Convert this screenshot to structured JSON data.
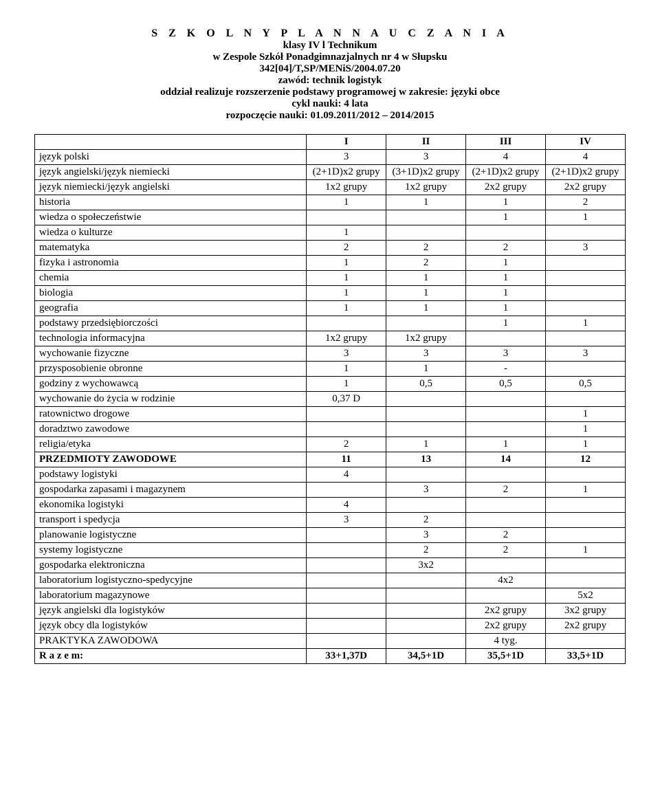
{
  "header": {
    "title_main": "S Z K O L N Y   P L A N   N A U C Z A N I A",
    "title_sub": "klasy  IV l Technikum",
    "school": "w Zespole Szkół Ponadgimnazjalnych nr 4 w Słupsku",
    "code": "342[04]/T,SP/MENiS/2004.07.20",
    "profession": "zawód: technik logistyk",
    "branch": "oddział realizuje  rozszerzenie podstawy programowej w zakresie: języki obce",
    "cycle": "cykl nauki:  4 lata",
    "start": "rozpoczęcie nauki:  01.09.2011/2012 – 2014/2015"
  },
  "table": {
    "columns": [
      "",
      "I",
      "II",
      "III",
      "IV"
    ],
    "col_widths": [
      "46%",
      "13.5%",
      "13.5%",
      "13.5%",
      "13.5%"
    ],
    "rows": [
      {
        "label": "język polski",
        "vals": [
          "3",
          "3",
          "4",
          "4"
        ]
      },
      {
        "label": "język angielski/język niemiecki",
        "vals": [
          "(2+1D)x2 grupy",
          "(3+1D)x2 grupy",
          "(2+1D)x2 grupy",
          "(2+1D)x2 grupy"
        ]
      },
      {
        "label": "język niemiecki/język angielski",
        "vals": [
          "1x2 grupy",
          "1x2 grupy",
          "2x2 grupy",
          "2x2 grupy"
        ]
      },
      {
        "label": "historia",
        "vals": [
          "1",
          "1",
          "1",
          "2"
        ]
      },
      {
        "label": "wiedza o społeczeństwie",
        "vals": [
          "",
          "",
          "1",
          "1"
        ]
      },
      {
        "label": "wiedza o kulturze",
        "vals": [
          "1",
          "",
          "",
          ""
        ]
      },
      {
        "label": "matematyka",
        "vals": [
          "2",
          "2",
          "2",
          "3"
        ]
      },
      {
        "label": "fizyka i astronomia",
        "vals": [
          "1",
          "2",
          "1",
          ""
        ]
      },
      {
        "label": "chemia",
        "vals": [
          "1",
          "1",
          "1",
          ""
        ]
      },
      {
        "label": "biologia",
        "vals": [
          "1",
          "1",
          "1",
          ""
        ]
      },
      {
        "label": "geografia",
        "vals": [
          "1",
          "1",
          "1",
          ""
        ]
      },
      {
        "label": "podstawy przedsiębiorczości",
        "vals": [
          "",
          "",
          "1",
          "1"
        ]
      },
      {
        "label": "technologia informacyjna",
        "vals": [
          "1x2 grupy",
          "1x2 grupy",
          "",
          ""
        ]
      },
      {
        "label": "wychowanie fizyczne",
        "vals": [
          "3",
          "3",
          "3",
          "3"
        ]
      },
      {
        "label": "przysposobienie obronne",
        "vals": [
          "1",
          "1",
          "-",
          ""
        ]
      },
      {
        "label": "godziny z wychowawcą",
        "vals": [
          "1",
          "0,5",
          "0,5",
          "0,5"
        ]
      },
      {
        "label": "wychowanie do życia w rodzinie",
        "vals": [
          "0,37 D",
          "",
          "",
          ""
        ]
      },
      {
        "label": "ratownictwo drogowe",
        "vals": [
          "",
          "",
          "",
          "1"
        ]
      },
      {
        "label": "doradztwo zawodowe",
        "vals": [
          "",
          "",
          "",
          "1"
        ]
      },
      {
        "label": "religia/etyka",
        "vals": [
          "2",
          "1",
          "1",
          "1"
        ]
      },
      {
        "label": "PRZEDMIOTY ZAWODOWE",
        "vals": [
          "11",
          "13",
          "14",
          "12"
        ],
        "bold": true
      },
      {
        "label": "podstawy logistyki",
        "vals": [
          "4",
          "",
          "",
          ""
        ]
      },
      {
        "label": "gospodarka zapasami i magazynem",
        "vals": [
          "",
          "3",
          "2",
          "1"
        ]
      },
      {
        "label": "ekonomika logistyki",
        "vals": [
          "4",
          "",
          "",
          ""
        ]
      },
      {
        "label": "transport i spedycja",
        "vals": [
          "3",
          "2",
          "",
          ""
        ]
      },
      {
        "label": "planowanie logistyczne",
        "vals": [
          "",
          "3",
          "2",
          ""
        ]
      },
      {
        "label": "systemy logistyczne",
        "vals": [
          "",
          "2",
          "2",
          "1"
        ]
      },
      {
        "label": "gospodarka elektroniczna",
        "vals": [
          "",
          "3x2",
          "",
          ""
        ]
      },
      {
        "label": "laboratorium logistyczno-spedycyjne",
        "vals": [
          "",
          "",
          "4x2",
          ""
        ]
      },
      {
        "label": "laboratorium magazynowe",
        "vals": [
          "",
          "",
          "",
          "5x2"
        ]
      },
      {
        "label": "język angielski dla logistyków",
        "vals": [
          "",
          "",
          "2x2 grupy",
          "3x2 grupy"
        ]
      },
      {
        "label": "język obcy dla logistyków",
        "vals": [
          "",
          "",
          "2x2 grupy",
          "2x2 grupy"
        ]
      },
      {
        "label": "PRAKTYKA ZAWODOWA",
        "vals": [
          "",
          "",
          "4 tyg.",
          ""
        ]
      },
      {
        "label": "R a z e m:",
        "vals": [
          "33+1,37D",
          "34,5+1D",
          "35,5+1D",
          "33,5+1D"
        ],
        "bold": true
      }
    ]
  }
}
